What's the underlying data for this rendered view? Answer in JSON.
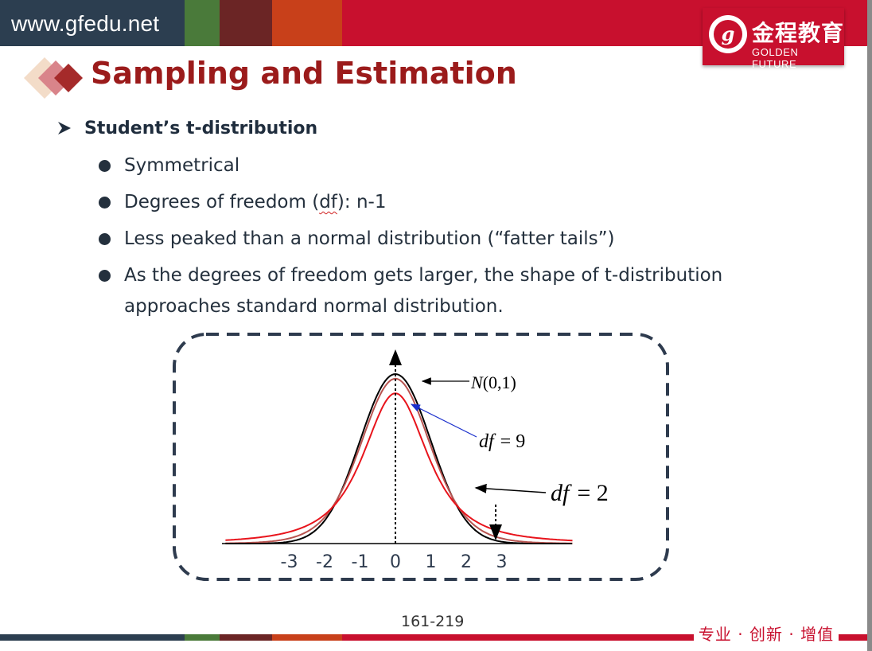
{
  "header": {
    "site_url": "www.gfedu.net",
    "bar_colors": [
      "#2c3e50",
      "#3a3f3a",
      "#4a7a3a",
      "#6b2525",
      "#c8401a",
      "#c8102e"
    ]
  },
  "logo": {
    "glyph": "g",
    "name_cn": "金程教育",
    "name_en": "GOLDEN FUTURE",
    "color": "#c8102e"
  },
  "slide": {
    "title": "Sampling and Estimation",
    "section_heading": "Student’s t-distribution",
    "bullets": [
      {
        "text": "Symmetrical"
      },
      {
        "prefix": "Degrees of freedom (",
        "underlined": "df",
        "suffix": "): n-1"
      },
      {
        "text": "Less peaked than a normal distribution (“fatter tails”)"
      },
      {
        "line1": "As the degrees of freedom gets larger, the shape of t-distribution",
        "line2": "approaches standard normal distribution."
      }
    ]
  },
  "chart_data": {
    "type": "line",
    "x_ticks": [
      "-3",
      "-2",
      "-1",
      "0",
      "1",
      "2",
      "3"
    ],
    "xlim": [
      -4.8,
      5.0
    ],
    "series": [
      {
        "name": "N(0,1)",
        "distribution": "normal",
        "color": "#000000"
      },
      {
        "name": "df = 9",
        "distribution": "t",
        "df": 9,
        "color": "#b85450"
      },
      {
        "name": "df = 2",
        "distribution": "t",
        "df": 2,
        "color": "#e8141c"
      }
    ],
    "labels": {
      "normal": {
        "func": "N",
        "args": "(0,1)"
      },
      "df9": {
        "var": "df",
        "rel": "= 9"
      },
      "df2": {
        "var": "df",
        "rel": "= 2"
      }
    },
    "annotation_colors": {
      "df9_arrow": "#1a2ecc",
      "other_arrows": "#000000"
    }
  },
  "footer": {
    "page_number": "161-219",
    "slogan": "专业 · 创新 · 增值",
    "bar_colors": [
      "#2c3e50",
      "#3a3f3a",
      "#4a7a3a",
      "#6b2525",
      "#c8401a",
      "#c8102e"
    ]
  }
}
